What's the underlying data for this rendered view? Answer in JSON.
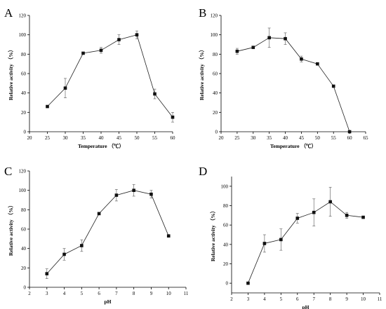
{
  "chart_data": [
    {
      "panel": "A",
      "type": "line",
      "xlabel": "Temperature （℃）",
      "ylabel": "Relative activity （%）",
      "xlim": [
        20,
        60
      ],
      "ylim": [
        0,
        120
      ],
      "xticks": [
        20,
        25,
        30,
        35,
        40,
        45,
        50,
        55,
        60
      ],
      "yticks": [
        0,
        20,
        40,
        60,
        80,
        100,
        120
      ],
      "x": [
        25,
        30,
        35,
        40,
        45,
        50,
        55,
        60
      ],
      "y": [
        26,
        45,
        81,
        84,
        95,
        100,
        39,
        15
      ],
      "err": [
        1,
        10,
        1,
        3,
        5,
        4,
        5,
        5
      ]
    },
    {
      "panel": "B",
      "type": "line",
      "xlabel": "Temperature （℃）",
      "ylabel": "Relative activity （%）",
      "xlim": [
        20,
        65
      ],
      "ylim": [
        0,
        120
      ],
      "xticks": [
        20,
        25,
        30,
        35,
        40,
        45,
        50,
        55,
        60,
        65
      ],
      "yticks": [
        0,
        20,
        40,
        60,
        80,
        100,
        120
      ],
      "x": [
        25,
        30,
        35,
        40,
        45,
        50,
        55,
        60
      ],
      "y": [
        83,
        87,
        97,
        96,
        75,
        70,
        47,
        0
      ],
      "err": [
        3,
        1,
        10,
        6,
        3,
        1,
        1,
        0
      ]
    },
    {
      "panel": "C",
      "type": "line",
      "xlabel": "pH",
      "ylabel": "Relative activity （%）",
      "xlim": [
        2,
        11
      ],
      "ylim": [
        0,
        120
      ],
      "xticks": [
        2,
        3,
        4,
        5,
        6,
        7,
        8,
        9,
        10,
        11
      ],
      "yticks": [
        0,
        20,
        40,
        60,
        80,
        100,
        120
      ],
      "x": [
        3,
        4,
        5,
        6,
        7,
        8,
        9,
        10
      ],
      "y": [
        14,
        34,
        43,
        76,
        95,
        100,
        96,
        53
      ],
      "err": [
        5,
        6,
        6,
        1,
        6,
        6,
        4,
        1
      ]
    },
    {
      "panel": "D",
      "type": "line",
      "xlabel": "pH",
      "ylabel": "Relative activity （%）",
      "xlim": [
        2,
        11
      ],
      "ylim": [
        -10,
        110
      ],
      "xticks": [
        2,
        3,
        4,
        5,
        6,
        7,
        8,
        9,
        10,
        11
      ],
      "yticks": [
        0,
        20,
        40,
        60,
        80,
        100
      ],
      "x": [
        3,
        4,
        5,
        6,
        7,
        8,
        9,
        10
      ],
      "y": [
        0,
        41,
        45,
        67,
        73,
        84,
        70,
        68
      ],
      "err": [
        0,
        9,
        11,
        5,
        14,
        15,
        3,
        1
      ]
    }
  ]
}
